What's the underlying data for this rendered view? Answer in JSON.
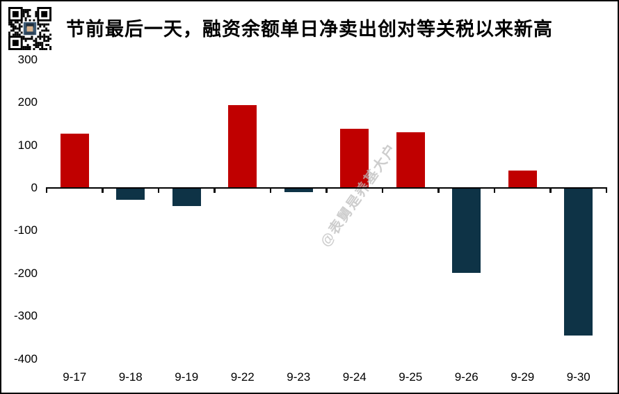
{
  "title": "节前最后一天，融资余额单日净卖出创对等关税以来新高",
  "watermark": "@表舅是养基大户",
  "colors": {
    "positive_bar": "#C00000",
    "negative_bar": "#0E3346",
    "axis": "#000000",
    "watermark": "#BDBDBD",
    "background": "#FFFFFF",
    "border": "#000000"
  },
  "chart_data": {
    "type": "bar",
    "title": "节前最后一天，融资余额单日净卖出创对等关税以来新高",
    "categories": [
      "9-17",
      "9-18",
      "9-19",
      "9-22",
      "9-23",
      "9-24",
      "9-25",
      "9-26",
      "9-29",
      "9-30"
    ],
    "values": [
      127,
      -27,
      -43,
      193,
      -10,
      139,
      131,
      -198,
      41,
      -346
    ],
    "xlabel": "",
    "ylabel": "",
    "ylim": [
      -400,
      300
    ],
    "ytick_interval": 100,
    "yticks": [
      300,
      200,
      100,
      0,
      -100,
      -200,
      -300,
      -400
    ],
    "grid": false,
    "legend": false,
    "color_rule": "positive values red, negative values dark navy"
  }
}
